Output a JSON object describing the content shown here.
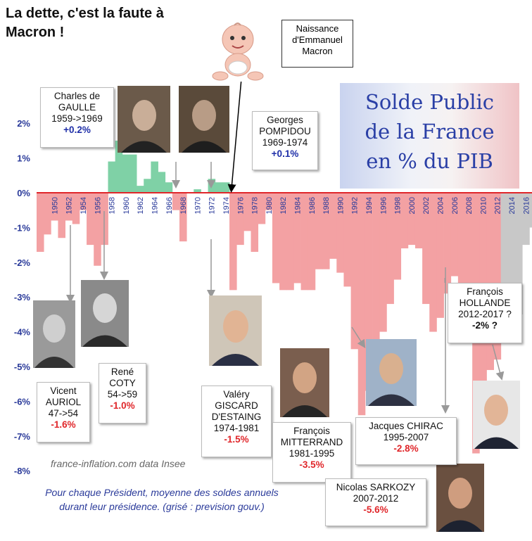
{
  "heading": [
    "La dette, c'est la faute à",
    "Macron !"
  ],
  "birth_note": [
    "Naissance",
    "d'Emmanuel",
    "Macron"
  ],
  "banner_title": [
    "Solde Public",
    "de la France",
    "en % du PIB"
  ],
  "source": "france-inflation.com  data Insee",
  "footnote": [
    "Pour chaque Président, moyenne des soldes annuels",
    "durant leur présidence. (grisé : prevision gouv.)"
  ],
  "presidents": [
    {
      "lines": [
        "Charles de",
        "GAULLE",
        "1959->1969"
      ],
      "value": "+0.2%",
      "sign": "pos"
    },
    {
      "lines": [
        "Georges",
        "POMPIDOU",
        "1969-1974"
      ],
      "value": "+0.1%",
      "sign": "pos"
    },
    {
      "lines": [
        "Vicent",
        "AURIOL",
        "47->54"
      ],
      "value": "-1.6%",
      "sign": "neg"
    },
    {
      "lines": [
        "René",
        "COTY",
        "54->59"
      ],
      "value": "-1.0%",
      "sign": "neg"
    },
    {
      "lines": [
        "Valéry",
        "GISCARD",
        "D'ESTAING",
        "1974-1981"
      ],
      "value": "-1.5%",
      "sign": "neg"
    },
    {
      "lines": [
        "François",
        "MITTERRAND",
        "1981-1995"
      ],
      "value": "-3.5%",
      "sign": "neg"
    },
    {
      "lines": [
        "Jacques CHIRAC",
        "1995-2007"
      ],
      "value": "-2.8%",
      "sign": "neg"
    },
    {
      "lines": [
        "Nicolas SARKOZY",
        "2007-2012"
      ],
      "value": "-5.6%",
      "sign": "neg"
    },
    {
      "lines": [
        "François",
        "HOLLANDE",
        "2012-2017 ?"
      ],
      "value": "-2% ?",
      "sign": "none"
    }
  ],
  "chart_data": {
    "type": "bar",
    "x": [
      1948,
      1949,
      1950,
      1951,
      1952,
      1953,
      1954,
      1955,
      1956,
      1957,
      1958,
      1959,
      1960,
      1961,
      1962,
      1963,
      1964,
      1965,
      1966,
      1967,
      1968,
      1969,
      1970,
      1971,
      1972,
      1973,
      1974,
      1975,
      1976,
      1977,
      1978,
      1979,
      1980,
      1981,
      1982,
      1983,
      1984,
      1985,
      1986,
      1987,
      1988,
      1989,
      1990,
      1991,
      1992,
      1993,
      1994,
      1995,
      1996,
      1997,
      1998,
      1999,
      2000,
      2001,
      2002,
      2003,
      2004,
      2005,
      2006,
      2007,
      2008,
      2009,
      2010,
      2011,
      2012,
      2013,
      2014,
      2015,
      2016,
      2017
    ],
    "values": [
      -1.7,
      -1.2,
      -0.8,
      -1.3,
      -0.8,
      -0.9,
      -0.5,
      -1.5,
      -2.1,
      -1.5,
      0.9,
      1.5,
      1.1,
      1.1,
      0.2,
      0.4,
      0.9,
      0.6,
      0.3,
      -0.5,
      -1.4,
      0.0,
      0.1,
      0.0,
      0.4,
      0.3,
      0.3,
      -2.8,
      -1.5,
      -1.1,
      -1.7,
      -0.9,
      -0.5,
      -2.6,
      -2.8,
      -2.8,
      -2.6,
      -2.8,
      -2.8,
      -2.2,
      -2.2,
      -1.9,
      -2.3,
      -2.7,
      -4.5,
      -6.4,
      -5.7,
      -5.5,
      -4.0,
      -3.2,
      -2.5,
      -1.6,
      -1.5,
      -1.6,
      -3.2,
      -4.0,
      -3.6,
      -2.9,
      -2.4,
      -2.7,
      -3.3,
      -7.5,
      -7.1,
      -5.1,
      -4.8,
      -4.1,
      -3.9,
      -3.5,
      -1.5,
      -1.0
    ],
    "forecast_from": 2013,
    "ylim": [
      -8,
      2.5
    ],
    "yticks": [
      "2%",
      "1%",
      "0%",
      "-1%",
      "-2%",
      "-3%",
      "-4%",
      "-5%",
      "-6%",
      "-7%",
      "-8%"
    ],
    "xticks": [
      1950,
      1952,
      1954,
      1956,
      1958,
      1960,
      1962,
      1964,
      1966,
      1968,
      1970,
      1972,
      1974,
      1976,
      1978,
      1980,
      1982,
      1984,
      1986,
      1988,
      1990,
      1992,
      1994,
      1996,
      1998,
      2000,
      2002,
      2004,
      2006,
      2008,
      2010,
      2012,
      2014,
      2016
    ],
    "colors": {
      "positive": "#7fd1a6",
      "negative": "#f3a1a3",
      "forecast": "#c8c8c8",
      "axis": "#e0262a",
      "ticklabel": "#2a3a9a"
    }
  }
}
